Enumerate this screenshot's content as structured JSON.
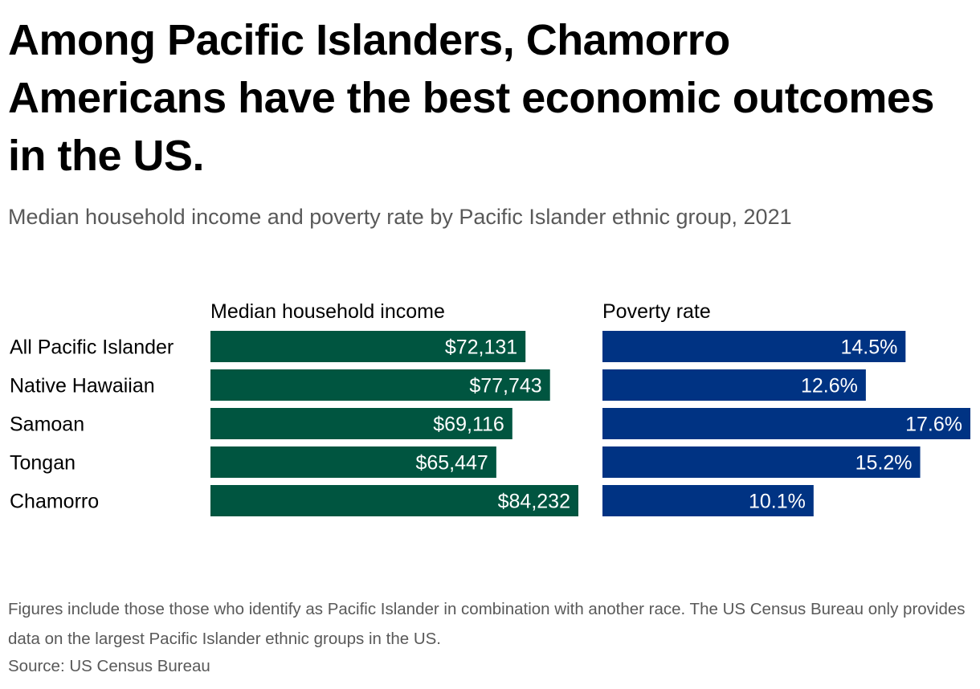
{
  "title": "Among Pacific Islanders, Chamorro Americans have the best economic outcomes in the US.",
  "subtitle": "Median household income and poverty rate by Pacific Islander ethnic group, 2021",
  "footnote": "Figures include those those who identify as Pacific Islander in combination with another race. The US Census Bureau only provides data on the largest Pacific Islander ethnic groups in the US.",
  "source": "Source: US Census Bureau",
  "colors": {
    "income": "#005540",
    "poverty": "#003383",
    "label_text": "#ffffff"
  },
  "chart_data": {
    "type": "bar",
    "orientation": "horizontal",
    "categories": [
      "All Pacific Islander",
      "Native Hawaiian",
      "Samoan",
      "Tongan",
      "Chamorro"
    ],
    "series": [
      {
        "name": "Median household income",
        "values": [
          72131,
          77743,
          69116,
          65447,
          84232
        ],
        "labels": [
          "$72,131",
          "$77,743",
          "$69,116",
          "$65,447",
          "$84,232"
        ],
        "xlim": [
          0,
          84232
        ]
      },
      {
        "name": "Poverty rate",
        "values": [
          14.5,
          12.6,
          17.6,
          15.2,
          10.1
        ],
        "labels": [
          "14.5%",
          "12.6%",
          "17.6%",
          "15.2%",
          "10.1%"
        ],
        "xlim": [
          0,
          17.6
        ]
      }
    ]
  }
}
